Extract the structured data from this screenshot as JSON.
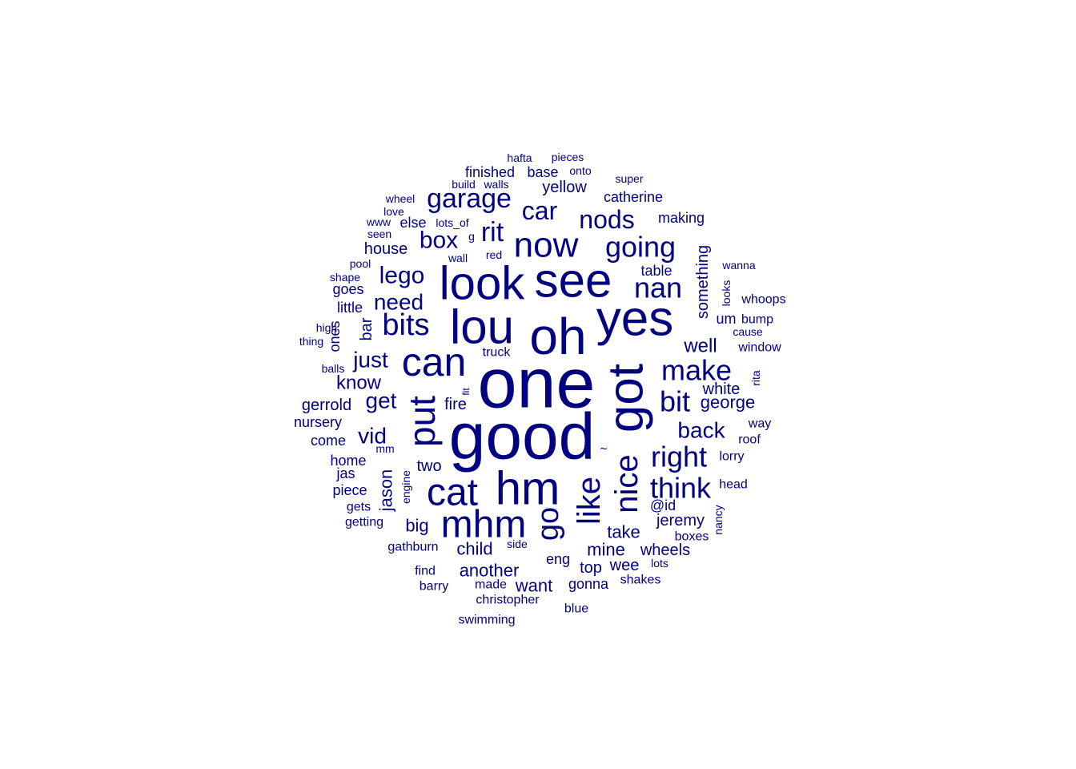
{
  "color": "#000080",
  "words": [
    {
      "text": "one",
      "size": 7
    },
    {
      "text": "good",
      "size": 7
    },
    {
      "text": "got",
      "size": 6
    },
    {
      "text": "oh",
      "size": 6
    },
    {
      "text": "yes",
      "size": 6
    },
    {
      "text": "lou",
      "size": 6
    },
    {
      "text": "see",
      "size": 6
    },
    {
      "text": "look",
      "size": 6
    },
    {
      "text": "hm",
      "size": 6
    },
    {
      "text": "can",
      "size": 5
    },
    {
      "text": "put",
      "size": 5
    },
    {
      "text": "cat",
      "size": 5
    },
    {
      "text": "mhm",
      "size": 5
    },
    {
      "text": "like",
      "size": 5
    },
    {
      "text": "nice",
      "size": 5
    },
    {
      "text": "go",
      "size": 5
    },
    {
      "text": "now",
      "size": 4
    },
    {
      "text": "bits",
      "size": 4
    },
    {
      "text": "garage",
      "size": 4
    },
    {
      "text": "nan",
      "size": 4
    },
    {
      "text": "going",
      "size": 4
    },
    {
      "text": "make",
      "size": 4
    },
    {
      "text": "bit",
      "size": 4
    },
    {
      "text": "right",
      "size": 4
    },
    {
      "text": "think",
      "size": 4
    },
    {
      "text": "nods",
      "size": 4
    },
    {
      "text": "car",
      "size": 4
    },
    {
      "text": "rit",
      "size": 4
    },
    {
      "text": "box",
      "size": 4
    },
    {
      "text": "lego",
      "size": 3
    },
    {
      "text": "need",
      "size": 3
    },
    {
      "text": "just",
      "size": 3
    },
    {
      "text": "get",
      "size": 3
    },
    {
      "text": "vid",
      "size": 3
    },
    {
      "text": "back",
      "size": 3
    },
    {
      "text": "jason",
      "size": 3
    },
    {
      "text": "well",
      "size": 3
    },
    {
      "text": "know",
      "size": 3
    },
    {
      "text": "george",
      "size": 2
    },
    {
      "text": "another",
      "size": 2
    },
    {
      "text": "big",
      "size": 2
    },
    {
      "text": "child",
      "size": 2
    },
    {
      "text": "mine",
      "size": 2
    },
    {
      "text": "wheels",
      "size": 2
    },
    {
      "text": "take",
      "size": 2
    },
    {
      "text": "jeremy",
      "size": 2
    },
    {
      "text": "want",
      "size": 2
    },
    {
      "text": "top",
      "size": 2
    },
    {
      "text": "wee",
      "size": 2
    },
    {
      "text": "yellow",
      "size": 2
    },
    {
      "text": "something",
      "size": 2
    },
    {
      "text": "two",
      "size": 2
    },
    {
      "text": "house",
      "size": 2
    },
    {
      "text": "fire",
      "size": 2
    },
    {
      "text": "gerrold",
      "size": 2
    },
    {
      "text": "@id",
      "size": 2
    },
    {
      "text": "white",
      "size": 2
    },
    {
      "text": "finished",
      "size": 2
    },
    {
      "text": "base",
      "size": 2
    },
    {
      "text": "catherine",
      "size": 2
    },
    {
      "text": "table",
      "size": 2
    },
    {
      "text": "making",
      "size": 2
    },
    {
      "text": "bar",
      "size": 2
    },
    {
      "text": "ones",
      "size": 2
    },
    {
      "text": "little",
      "size": 2
    },
    {
      "text": "goes",
      "size": 2
    },
    {
      "text": "eng",
      "size": 2
    },
    {
      "text": "gonna",
      "size": 2
    },
    {
      "text": "um",
      "size": 2
    },
    {
      "text": "else",
      "size": 2
    },
    {
      "text": "nursery",
      "size": 1
    },
    {
      "text": "come",
      "size": 1
    },
    {
      "text": "home",
      "size": 1
    },
    {
      "text": "jas",
      "size": 1
    },
    {
      "text": "piece",
      "size": 1
    },
    {
      "text": "gets",
      "size": 1
    },
    {
      "text": "getting",
      "size": 1
    },
    {
      "text": "gathburn",
      "size": 1
    },
    {
      "text": "find",
      "size": 1
    },
    {
      "text": "barry",
      "size": 1
    },
    {
      "text": "made",
      "size": 1
    },
    {
      "text": "christopher",
      "size": 1
    },
    {
      "text": "swimming",
      "size": 1
    },
    {
      "text": "blue",
      "size": 1
    },
    {
      "text": "shakes",
      "size": 1
    },
    {
      "text": "lots",
      "size": 1
    },
    {
      "text": "boxes",
      "size": 1
    },
    {
      "text": "side",
      "size": 1
    },
    {
      "text": "head",
      "size": 1
    },
    {
      "text": "lorry",
      "size": 1
    },
    {
      "text": "roof",
      "size": 1
    },
    {
      "text": "way",
      "size": 1
    },
    {
      "text": "rita",
      "size": 1
    },
    {
      "text": "window",
      "size": 1
    },
    {
      "text": "cause",
      "size": 1
    },
    {
      "text": "bump",
      "size": 1
    },
    {
      "text": "whoops",
      "size": 1
    },
    {
      "text": "looks",
      "size": 1
    },
    {
      "text": "wanna",
      "size": 1
    },
    {
      "text": "super",
      "size": 1
    },
    {
      "text": "onto",
      "size": 1
    },
    {
      "text": "pieces",
      "size": 1
    },
    {
      "text": "hafta",
      "size": 1
    },
    {
      "text": "build",
      "size": 1
    },
    {
      "text": "walls",
      "size": 1
    },
    {
      "text": "wheel",
      "size": 1
    },
    {
      "text": "love",
      "size": 1
    },
    {
      "text": "www",
      "size": 1
    },
    {
      "text": "lots_of",
      "size": 1
    },
    {
      "text": "g",
      "size": 1
    },
    {
      "text": "seen",
      "size": 1
    },
    {
      "text": "wall",
      "size": 1
    },
    {
      "text": "red",
      "size": 1
    },
    {
      "text": "pool",
      "size": 1
    },
    {
      "text": "shape",
      "size": 1
    },
    {
      "text": "high",
      "size": 1
    },
    {
      "text": "thing",
      "size": 1
    },
    {
      "text": "balls",
      "size": 1
    },
    {
      "text": "truck",
      "size": 1
    },
    {
      "text": "fit",
      "size": 1
    },
    {
      "text": "mm",
      "size": 1
    },
    {
      "text": "engine",
      "size": 1
    },
    {
      "text": "nancy",
      "size": 1
    },
    {
      "text": "~",
      "size": 1
    }
  ]
}
